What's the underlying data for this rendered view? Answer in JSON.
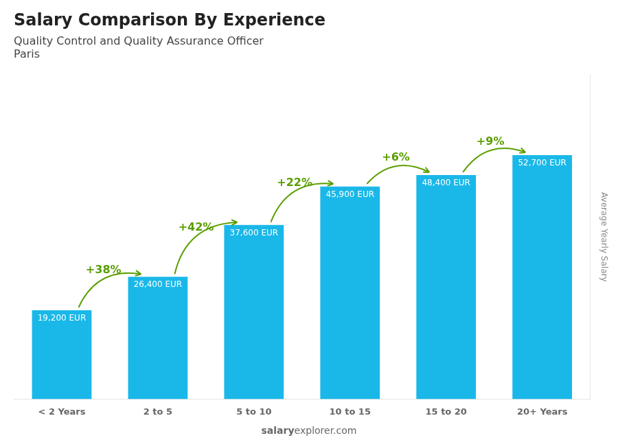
{
  "chart_data": {
    "type": "bar",
    "title": "Salary Comparison By Experience",
    "subtitle": "Quality Control and Quality Assurance Officer",
    "city": "Paris",
    "categories": [
      "< 2 Years",
      "2 to 5",
      "5 to 10",
      "10 to 15",
      "15 to 20",
      "20+ Years"
    ],
    "values": [
      19200,
      26400,
      37600,
      45900,
      48400,
      52700
    ],
    "value_labels": [
      "19,200 EUR",
      "26,400 EUR",
      "37,600 EUR",
      "45,900 EUR",
      "48,400 EUR",
      "52,700 EUR"
    ],
    "color": "#1ab8e8",
    "ylabel": "Average Yearly Salary",
    "ylim": [
      0,
      70000
    ],
    "grid": false,
    "data_labels": true,
    "tick_labels": "x",
    "annotations": [
      "+38%",
      "+42%",
      "+22%",
      "+6%",
      "+9%"
    ],
    "watermark": [
      "salary",
      "explorer.com"
    ]
  }
}
